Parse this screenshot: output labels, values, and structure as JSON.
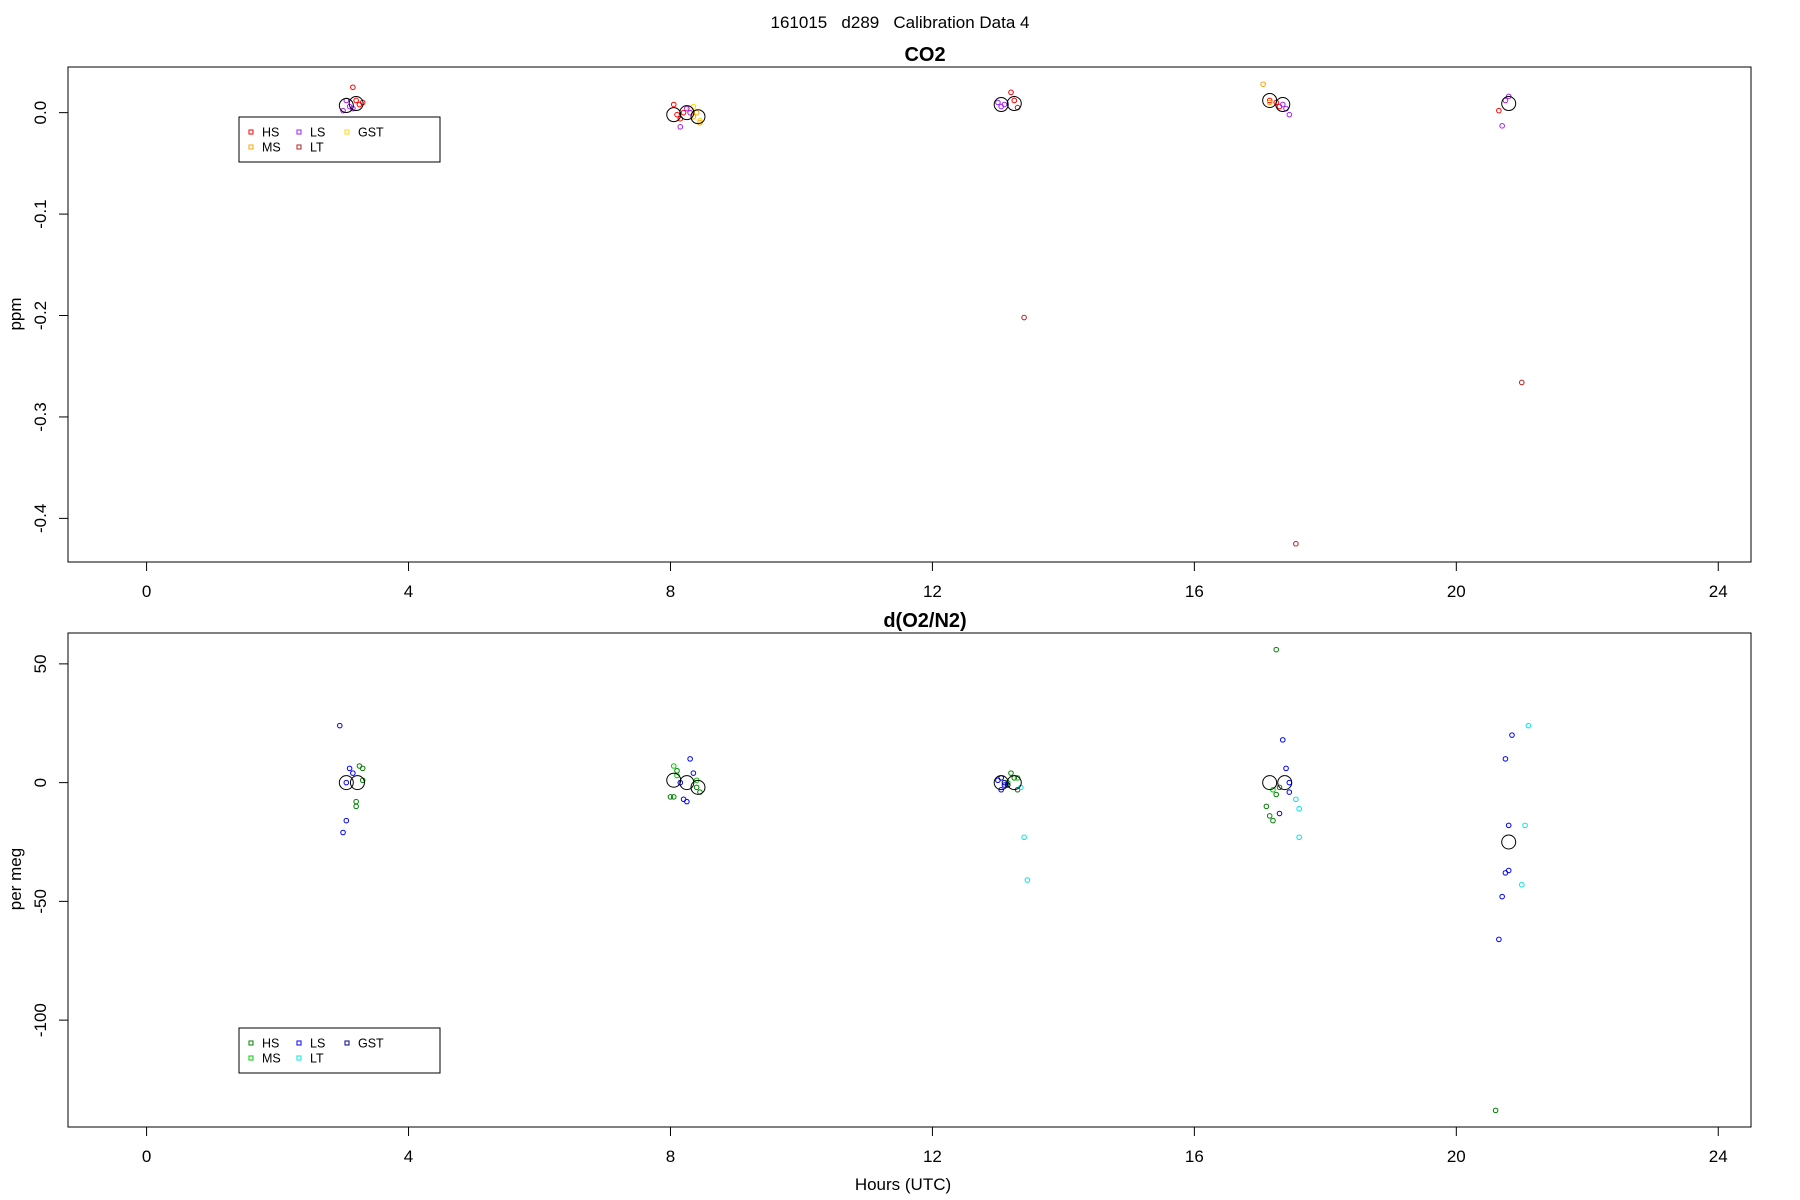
{
  "page": {
    "supertitle": "161015   d289   Calibration Data 4",
    "xlabel": "Hours (UTC)"
  },
  "chart_data": [
    {
      "type": "scatter",
      "title": "CO2",
      "ylabel": "ppm",
      "xlim": [
        -1.2,
        24.5
      ],
      "ylim": [
        -0.443,
        0.045
      ],
      "x_ticks": [
        0,
        4,
        8,
        12,
        16,
        20,
        24
      ],
      "y_ticks": [
        0.0,
        -0.1,
        -0.2,
        -0.3,
        -0.4
      ],
      "y_tick_labels": [
        "0.0",
        "-0.1",
        "-0.2",
        "-0.3",
        "-0.4"
      ],
      "grid": false,
      "legend": {
        "placement": "top-left",
        "entries": [
          {
            "label": "HS",
            "color": "#ff0000"
          },
          {
            "label": "MS",
            "color": "#ffa500"
          },
          {
            "label": "LS",
            "color": "#a020f0"
          },
          {
            "label": "LT",
            "color": "#b22222"
          },
          {
            "label": "GST",
            "color": "#ffd700"
          }
        ]
      },
      "series": [
        {
          "name": "HS",
          "color": "#ff0000",
          "points": [
            [
              3.15,
              0.025
            ],
            [
              3.2,
              0.012
            ],
            [
              3.25,
              0.008
            ],
            [
              3.3,
              0.01
            ],
            [
              8.05,
              0.008
            ],
            [
              8.1,
              -0.002
            ],
            [
              8.15,
              -0.006
            ],
            [
              8.2,
              0.0
            ],
            [
              13.2,
              0.02
            ],
            [
              13.25,
              0.012
            ],
            [
              13.3,
              0.005
            ],
            [
              17.15,
              0.012
            ],
            [
              17.25,
              0.01
            ],
            [
              17.3,
              0.006
            ],
            [
              20.65,
              0.002
            ]
          ]
        },
        {
          "name": "MS",
          "color": "#ffa500",
          "points": [
            [
              8.3,
              0.004
            ],
            [
              8.35,
              -0.004
            ],
            [
              8.4,
              0.0
            ],
            [
              8.45,
              -0.01
            ],
            [
              17.05,
              0.028
            ],
            [
              17.15,
              0.01
            ]
          ]
        },
        {
          "name": "LS",
          "color": "#a020f0",
          "points": [
            [
              3.0,
              0.002
            ],
            [
              3.05,
              0.012
            ],
            [
              3.1,
              0.006
            ],
            [
              3.15,
              0.004
            ],
            [
              8.15,
              -0.014
            ],
            [
              8.25,
              0.004
            ],
            [
              8.3,
              0.0
            ],
            [
              13.0,
              0.01
            ],
            [
              13.05,
              0.006
            ],
            [
              13.1,
              0.008
            ],
            [
              17.35,
              0.008
            ],
            [
              17.4,
              0.004
            ],
            [
              17.45,
              -0.002
            ],
            [
              20.7,
              -0.013
            ],
            [
              20.75,
              0.012
            ],
            [
              20.8,
              0.016
            ]
          ]
        },
        {
          "name": "LT",
          "color": "#b22222",
          "points": [
            [
              13.4,
              -0.202
            ],
            [
              17.55,
              -0.425
            ],
            [
              21.0,
              -0.266
            ]
          ]
        },
        {
          "name": "GST",
          "color": "#ffd700",
          "points": [
            [
              8.35,
              0.006
            ],
            [
              8.45,
              -0.008
            ]
          ]
        }
      ],
      "means": [
        [
          3.05,
          0.007
        ],
        [
          3.2,
          0.009
        ],
        [
          8.05,
          -0.002
        ],
        [
          8.25,
          0.0
        ],
        [
          8.42,
          -0.004
        ],
        [
          13.05,
          0.008
        ],
        [
          13.25,
          0.009
        ],
        [
          17.15,
          0.012
        ],
        [
          17.35,
          0.008
        ],
        [
          20.8,
          0.009
        ]
      ]
    },
    {
      "type": "scatter",
      "title": "d(O2/N2)",
      "ylabel": "per meg",
      "xlim": [
        -1.2,
        24.5
      ],
      "ylim": [
        -145,
        63
      ],
      "x_ticks": [
        0,
        4,
        8,
        12,
        16,
        20,
        24
      ],
      "y_ticks": [
        50,
        0,
        -50,
        -100
      ],
      "y_tick_labels": [
        "50",
        "0",
        "-50",
        "-100"
      ],
      "grid": false,
      "legend": {
        "placement": "bottom-left",
        "entries": [
          {
            "label": "HS",
            "color": "#008000"
          },
          {
            "label": "MS",
            "color": "#00cc00"
          },
          {
            "label": "LS",
            "color": "#0000ff"
          },
          {
            "label": "LT",
            "color": "#00e5ee"
          },
          {
            "label": "GST",
            "color": "#00008b"
          }
        ]
      },
      "series": [
        {
          "name": "HS",
          "color": "#008000",
          "points": [
            [
              3.25,
              7
            ],
            [
              3.3,
              6
            ],
            [
              3.2,
              -8
            ],
            [
              3.2,
              -10
            ],
            [
              3.3,
              1
            ],
            [
              8.0,
              -6
            ],
            [
              8.05,
              -6
            ],
            [
              8.1,
              5
            ],
            [
              8.4,
              -2
            ],
            [
              8.45,
              -4
            ],
            [
              13.2,
              4
            ],
            [
              13.25,
              2
            ],
            [
              13.3,
              -3
            ],
            [
              17.1,
              -10
            ],
            [
              17.15,
              -14
            ],
            [
              17.2,
              -16
            ],
            [
              17.25,
              -5
            ],
            [
              17.3,
              -2
            ],
            [
              17.25,
              56
            ],
            [
              20.6,
              -138
            ]
          ]
        },
        {
          "name": "MS",
          "color": "#00cc00",
          "points": [
            [
              8.05,
              7
            ],
            [
              8.1,
              3
            ],
            [
              8.4,
              1
            ],
            [
              13.15,
              0
            ],
            [
              13.3,
              2
            ],
            [
              17.2,
              -3
            ]
          ]
        },
        {
          "name": "LS",
          "color": "#0000ff",
          "points": [
            [
              2.95,
              24
            ],
            [
              3.0,
              -21
            ],
            [
              3.05,
              -16
            ],
            [
              3.1,
              6
            ],
            [
              3.15,
              4
            ],
            [
              3.05,
              0
            ],
            [
              8.15,
              0
            ],
            [
              8.2,
              -7
            ],
            [
              8.25,
              -8
            ],
            [
              8.3,
              10
            ],
            [
              8.35,
              4
            ],
            [
              13.0,
              1
            ],
            [
              13.05,
              -3
            ],
            [
              13.1,
              -1
            ],
            [
              17.3,
              -13
            ],
            [
              17.35,
              18
            ],
            [
              17.4,
              6
            ],
            [
              17.45,
              -4
            ],
            [
              17.45,
              0
            ],
            [
              20.65,
              -66
            ],
            [
              20.7,
              -48
            ],
            [
              20.75,
              -38
            ],
            [
              20.8,
              -37
            ],
            [
              20.8,
              -18
            ],
            [
              20.75,
              10
            ],
            [
              20.85,
              20
            ]
          ]
        },
        {
          "name": "LT",
          "color": "#00e5ee",
          "points": [
            [
              13.35,
              -2
            ],
            [
              13.4,
              -23
            ],
            [
              13.45,
              -41
            ],
            [
              17.55,
              -7
            ],
            [
              17.6,
              -11
            ],
            [
              17.6,
              -23
            ],
            [
              21.0,
              -43
            ],
            [
              21.05,
              -18
            ],
            [
              21.1,
              24
            ]
          ]
        },
        {
          "name": "GST",
          "color": "#00008b",
          "points": [
            [
              13.05,
              2
            ],
            [
              13.1,
              0
            ],
            [
              13.15,
              -1
            ]
          ]
        }
      ],
      "means": [
        [
          3.05,
          0
        ],
        [
          3.22,
          0
        ],
        [
          8.05,
          1
        ],
        [
          8.25,
          0
        ],
        [
          8.42,
          -2
        ],
        [
          13.05,
          0
        ],
        [
          13.25,
          0
        ],
        [
          17.15,
          0
        ],
        [
          17.38,
          0
        ],
        [
          20.8,
          -25
        ]
      ]
    }
  ]
}
